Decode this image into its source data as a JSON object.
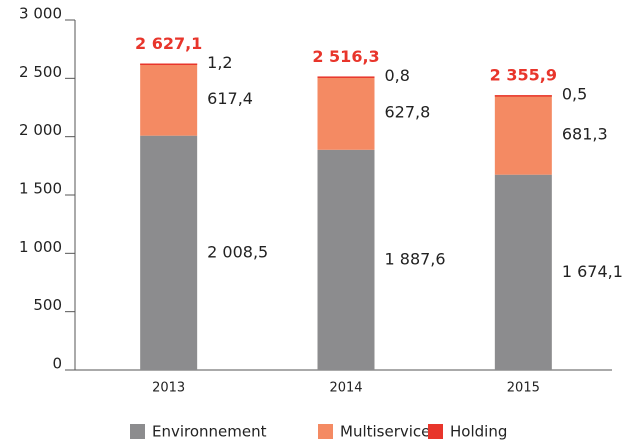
{
  "chart_data": {
    "type": "bar",
    "stacked": true,
    "categories": [
      "2013",
      "2014",
      "2015"
    ],
    "series": [
      {
        "name": "Environnement",
        "color": "#8c8c8e",
        "values": [
          2008.5,
          1887.6,
          1674.1
        ],
        "value_labels": [
          "2 008,5",
          "1 887,6",
          "1 674,1"
        ]
      },
      {
        "name": "Multiservices",
        "color": "#f48a63",
        "values": [
          617.4,
          627.8,
          681.3
        ],
        "value_labels": [
          "617,4",
          "627,8",
          "681,3"
        ]
      },
      {
        "name": "Holding",
        "color": "#e8352b",
        "values": [
          1.2,
          0.8,
          0.5
        ],
        "value_labels": [
          "1,2",
          "0,8",
          "0,5"
        ]
      }
    ],
    "totals": [
      2627.1,
      2516.3,
      2355.9
    ],
    "total_labels": [
      "2 627,1",
      "2 516,3",
      "2 355,9"
    ],
    "total_color": "#e8352b",
    "ylim": [
      0,
      3000
    ],
    "yticks": [
      0,
      500,
      {
        "value": 1000,
        "label": "1 000"
      },
      {
        "value": 1500,
        "label": "1 500"
      },
      {
        "value": 2000,
        "label": "2 000"
      },
      {
        "value": 2500,
        "label": "2 500"
      },
      {
        "value": 3000,
        "label": "3 000"
      }
    ]
  }
}
